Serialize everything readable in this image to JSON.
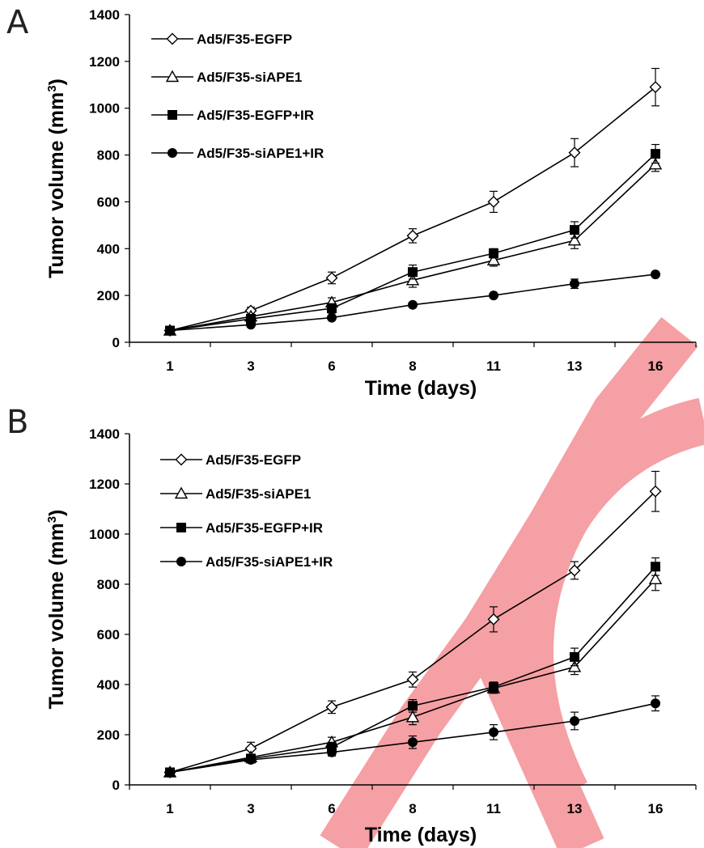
{
  "chart_data": [
    {
      "type": "line",
      "panel": "A",
      "categories": [
        "1",
        "3",
        "6",
        "8",
        "11",
        "13",
        "16"
      ],
      "xlabel": "Time (days)",
      "ylabel": "Tumor volume (mm",
      "ylabel_sup": "3",
      "ylabel_close": ")",
      "ylim": [
        0,
        1400
      ],
      "yticks": [
        0,
        200,
        400,
        600,
        800,
        1000,
        1200,
        1400
      ],
      "legend_position": "top-left",
      "series": [
        {
          "name": "Ad5/F35-EGFP",
          "marker": "diamond-open",
          "values": [
            50,
            135,
            275,
            455,
            600,
            810,
            1090
          ],
          "errors": [
            0,
            15,
            25,
            30,
            45,
            60,
            80
          ]
        },
        {
          "name": "Ad5/F35-siAPE1",
          "marker": "triangle-open",
          "values": [
            50,
            110,
            170,
            265,
            350,
            435,
            760
          ],
          "errors": [
            0,
            10,
            20,
            30,
            25,
            35,
            30
          ]
        },
        {
          "name": "Ad5/F35-EGFP+IR",
          "marker": "square-filled",
          "values": [
            50,
            100,
            145,
            300,
            380,
            480,
            805
          ],
          "errors": [
            0,
            10,
            20,
            30,
            20,
            35,
            40
          ]
        },
        {
          "name": "Ad5/F35-siAPE1+IR",
          "marker": "circle-filled",
          "values": [
            50,
            75,
            105,
            160,
            200,
            250,
            290
          ],
          "errors": [
            0,
            8,
            10,
            10,
            10,
            20,
            10
          ]
        }
      ]
    },
    {
      "type": "line",
      "panel": "B",
      "categories": [
        "1",
        "3",
        "6",
        "8",
        "11",
        "13",
        "16"
      ],
      "xlabel": "Time (days)",
      "ylabel": "Tumor volume (mm",
      "ylabel_sup": "3",
      "ylabel_close": ")",
      "ylim": [
        0,
        1400
      ],
      "yticks": [
        0,
        200,
        400,
        600,
        800,
        1000,
        1200,
        1400
      ],
      "legend_position": "top-left",
      "series": [
        {
          "name": "Ad5/F35-EGFP",
          "marker": "diamond-open",
          "values": [
            50,
            145,
            310,
            420,
            660,
            855,
            1170
          ],
          "errors": [
            0,
            25,
            25,
            30,
            50,
            35,
            80
          ]
        },
        {
          "name": "Ad5/F35-siAPE1",
          "marker": "triangle-open",
          "values": [
            50,
            110,
            170,
            270,
            385,
            470,
            820
          ],
          "errors": [
            0,
            10,
            20,
            30,
            20,
            30,
            45
          ]
        },
        {
          "name": "Ad5/F35-EGFP+IR",
          "marker": "square-filled",
          "values": [
            50,
            105,
            150,
            315,
            390,
            510,
            870
          ],
          "errors": [
            0,
            10,
            20,
            25,
            20,
            35,
            35
          ]
        },
        {
          "name": "Ad5/F35-siAPE1+IR",
          "marker": "circle-filled",
          "values": [
            50,
            100,
            130,
            170,
            210,
            255,
            325
          ],
          "errors": [
            0,
            10,
            15,
            25,
            30,
            35,
            30
          ]
        }
      ]
    }
  ],
  "watermark": {
    "text": "RETRACTED",
    "color": "#f5a0a4"
  },
  "colors": {
    "ink": "#000000",
    "panel_letter": "#222222"
  }
}
